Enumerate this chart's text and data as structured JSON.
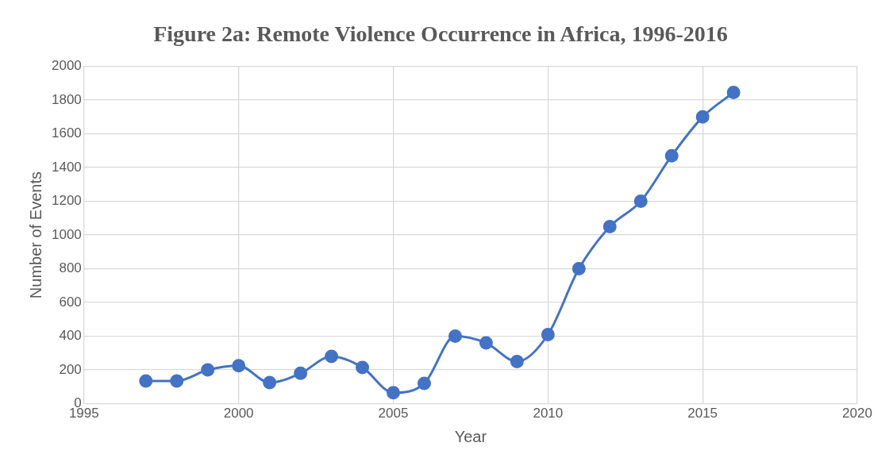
{
  "chart_data": {
    "type": "line",
    "title": "Figure 2a: Remote Violence Occurrence in Africa, 1996-2016",
    "xlabel": "Year",
    "ylabel": "Number of Events",
    "x": [
      1997,
      1998,
      1999,
      2000,
      2001,
      2002,
      2003,
      2004,
      2005,
      2006,
      2007,
      2008,
      2009,
      2010,
      2011,
      2012,
      2013,
      2014,
      2015,
      2016
    ],
    "series": [
      {
        "color": "#4472c4",
        "values": [
          135,
          135,
          200,
          225,
          125,
          180,
          280,
          215,
          65,
          120,
          400,
          360,
          250,
          410,
          800,
          1050,
          1200,
          1470,
          1700,
          1845
        ]
      }
    ],
    "xlim": [
      1995,
      2020
    ],
    "xticks": [
      1995,
      2000,
      2005,
      2010,
      2015,
      2020
    ],
    "ylim": [
      0,
      2000
    ],
    "yticks": [
      0,
      200,
      400,
      600,
      800,
      1000,
      1200,
      1400,
      1600,
      1800,
      2000
    ],
    "grid": true,
    "legend": false,
    "marker": "circle",
    "line_style": "solid"
  }
}
